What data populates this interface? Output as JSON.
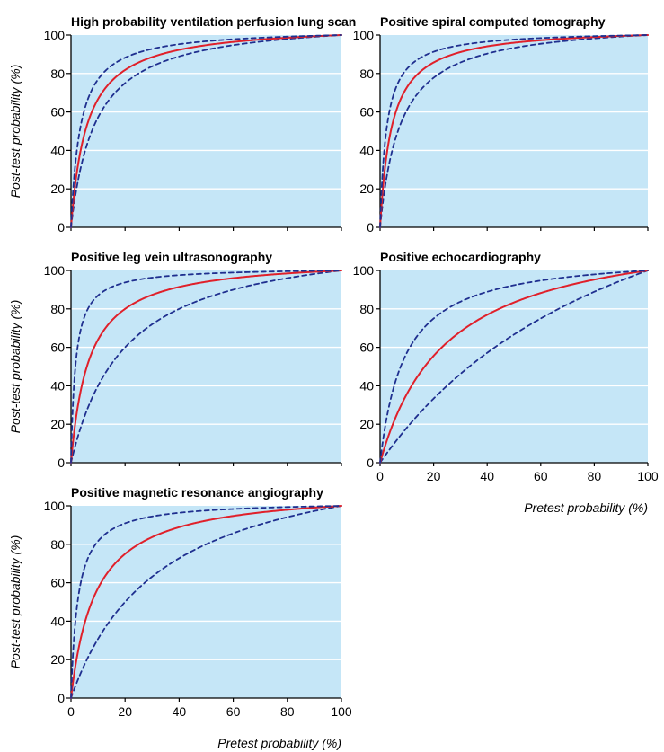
{
  "colors": {
    "plot_background": "#c5e6f7",
    "gridline": "#ffffff",
    "point_estimate": "#e0202a",
    "confidence_bound": "#1f2f8f"
  },
  "y_ticks": [
    "0",
    "20",
    "40",
    "60",
    "80",
    "100"
  ],
  "x_ticks": [
    "0",
    "20",
    "40",
    "60",
    "80",
    "100"
  ],
  "chart_data": [
    {
      "type": "line",
      "title": "High probability ventilation perfusion lung scan",
      "ylabel": "Post-test probability (%)",
      "xlabel": "",
      "xlim": [
        0,
        100
      ],
      "ylim": [
        0,
        100
      ],
      "grid": true,
      "series": [
        {
          "role": "lower",
          "style": "dashed",
          "lr": 12
        },
        {
          "role": "estimate",
          "style": "solid",
          "lr": 18
        },
        {
          "role": "upper",
          "style": "dashed",
          "lr": 30
        }
      ]
    },
    {
      "type": "line",
      "title": "Positive spiral computed tomography",
      "ylabel": "",
      "xlabel": "",
      "xlim": [
        0,
        100
      ],
      "ylim": [
        0,
        100
      ],
      "grid": true,
      "series": [
        {
          "role": "lower",
          "style": "dashed",
          "lr": 14
        },
        {
          "role": "estimate",
          "style": "solid",
          "lr": 24
        },
        {
          "role": "upper",
          "style": "dashed",
          "lr": 42
        }
      ]
    },
    {
      "type": "line",
      "title": "Positive leg vein ultrasonography",
      "ylabel": "Post-test probability (%)",
      "xlabel": "",
      "xlim": [
        0,
        100
      ],
      "ylim": [
        0,
        100
      ],
      "grid": true,
      "series": [
        {
          "role": "lower",
          "style": "dashed",
          "lr": 6
        },
        {
          "role": "estimate",
          "style": "solid",
          "lr": 16
        },
        {
          "role": "upper",
          "style": "dashed",
          "lr": 60
        }
      ]
    },
    {
      "type": "line",
      "title": "Positive echocardiography",
      "ylabel": "",
      "xlabel": "Pretest probability (%)",
      "xlim": [
        0,
        100
      ],
      "ylim": [
        0,
        100
      ],
      "grid": true,
      "series": [
        {
          "role": "lower",
          "style": "dashed",
          "lr": 2
        },
        {
          "role": "estimate",
          "style": "solid",
          "lr": 5
        },
        {
          "role": "upper",
          "style": "dashed",
          "lr": 12
        }
      ]
    },
    {
      "type": "line",
      "title": "Positive magnetic resonance angiography",
      "ylabel": "Post-test probability (%)",
      "xlabel": "Pretest probability (%)",
      "xlim": [
        0,
        100
      ],
      "ylim": [
        0,
        100
      ],
      "grid": true,
      "series": [
        {
          "role": "lower",
          "style": "dashed",
          "lr": 4
        },
        {
          "role": "estimate",
          "style": "solid",
          "lr": 12
        },
        {
          "role": "upper",
          "style": "dashed",
          "lr": 40
        }
      ]
    }
  ]
}
